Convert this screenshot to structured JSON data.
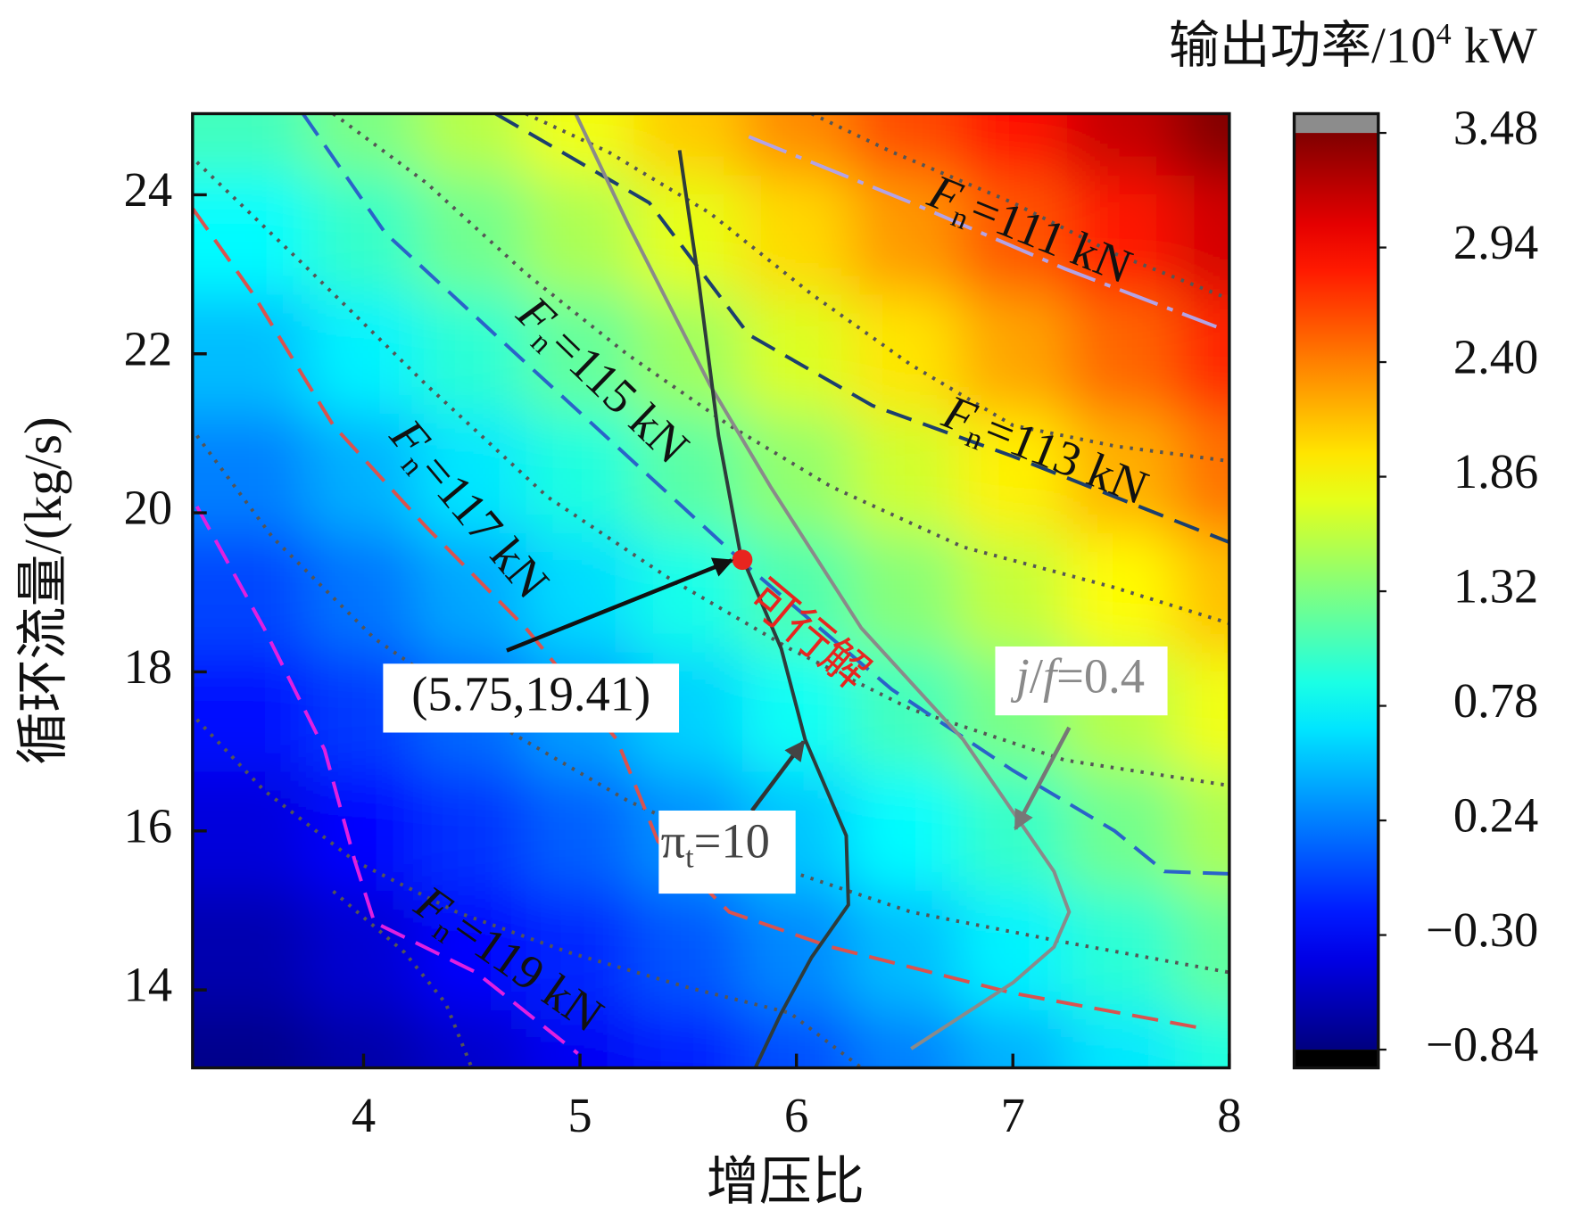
{
  "chart_data": {
    "type": "contour",
    "x_title": "增压比",
    "y_title": "循环流量/(kg/s)",
    "colorbar_title": {
      "text": "输出功率/10",
      "sup": "4",
      "unit": " kW"
    },
    "xlim": [
      3.21,
      8.0
    ],
    "ylim": [
      13.02,
      25.02
    ],
    "xticks": [
      4,
      5,
      6,
      7,
      8
    ],
    "yticks": [
      14,
      16,
      18,
      20,
      22,
      24
    ],
    "zlim": [
      -0.84,
      3.48
    ],
    "zticks": [
      3.48,
      2.94,
      {
        "value": 2.4,
        "label": "2.40"
      },
      1.86,
      1.32,
      0.78,
      0.24,
      {
        "value": -0.3,
        "label": "−0.30"
      },
      {
        "value": -0.84,
        "label": "−0.84"
      }
    ],
    "colormap": "jet",
    "x_grid": [
      3.5,
      4,
      4.5,
      5,
      5.5,
      6,
      6.5,
      7,
      7.5,
      8
    ],
    "y_grid": [
      13,
      14.5,
      16,
      17.5,
      19,
      20.5,
      22,
      23.5,
      25
    ],
    "z": [
      [
        -0.79,
        -0.67,
        -0.52,
        -0.35,
        -0.17,
        0.03,
        0.24,
        0.45,
        0.68,
        0.91
      ],
      [
        -0.64,
        -0.49,
        -0.31,
        -0.13,
        0.07,
        0.28,
        0.5,
        0.73,
        0.96,
        1.2
      ],
      [
        -0.45,
        -0.28,
        -0.09,
        0.11,
        0.32,
        0.54,
        0.77,
        1.01,
        1.26,
        1.51
      ],
      [
        -0.24,
        -0.05,
        0.15,
        0.37,
        0.59,
        0.82,
        1.06,
        1.3,
        1.56,
        1.81
      ],
      [
        -0.01,
        0.2,
        0.41,
        0.63,
        0.87,
        1.11,
        1.35,
        1.61,
        1.87,
        2.13
      ],
      [
        0.24,
        0.45,
        0.68,
        0.91,
        1.16,
        1.4,
        1.66,
        1.92,
        2.19,
        2.46
      ],
      [
        0.5,
        0.73,
        0.96,
        1.2,
        1.45,
        1.71,
        1.97,
        2.24,
        2.51,
        2.79
      ],
      [
        0.77,
        1.01,
        1.26,
        1.51,
        1.76,
        2.02,
        2.29,
        2.57,
        2.85,
        3.13
      ],
      [
        1.06,
        1.3,
        1.56,
        1.81,
        2.08,
        2.35,
        2.62,
        2.9,
        3.19,
        3.48
      ]
    ],
    "power_contours": [
      {
        "color": "#555555",
        "x": [
          6.07,
          6.44,
          7.0,
          7.47,
          8.0
        ],
        "y": [
          25.02,
          24.54,
          23.9,
          23.26,
          22.69
        ]
      },
      {
        "color": "#555555",
        "x": [
          4.75,
          5.13,
          5.6,
          6.07,
          6.53,
          7.0,
          7.47,
          8.0
        ],
        "y": [
          25.02,
          24.54,
          23.77,
          22.75,
          21.86,
          21.1,
          20.84,
          20.65
        ]
      },
      {
        "color": "#555555",
        "x": [
          3.86,
          4.29,
          4.75,
          5.22,
          5.69,
          6.16,
          6.77,
          7.47,
          8.0
        ],
        "y": [
          25.02,
          24.15,
          23.01,
          21.99,
          21.1,
          20.33,
          19.57,
          19.06,
          18.61
        ]
      },
      {
        "color": "#555555",
        "x": [
          3.23,
          3.72,
          4.29,
          4.85,
          5.41,
          5.97,
          6.53,
          7.24,
          8.0
        ],
        "y": [
          24.41,
          23.13,
          21.61,
          20.2,
          19.18,
          18.29,
          17.53,
          16.89,
          16.57
        ]
      },
      {
        "color": "#555555",
        "x": [
          3.23,
          3.58,
          4.05,
          4.66,
          5.22,
          5.83,
          6.53,
          7.24,
          8.0
        ],
        "y": [
          20.97,
          19.69,
          18.42,
          17.27,
          16.38,
          15.62,
          14.98,
          14.6,
          14.22
        ]
      },
      {
        "color": "#555555",
        "x": [
          3.23,
          3.54,
          3.96,
          4.43,
          4.95,
          5.5,
          5.97,
          6.3
        ],
        "y": [
          17.4,
          16.51,
          15.62,
          14.98,
          14.47,
          14.03,
          13.71,
          13.02
        ]
      },
      {
        "color": "#555555",
        "x": [
          3.86,
          4.19,
          4.38,
          4.5
        ],
        "y": [
          15.24,
          14.47,
          13.83,
          13.02
        ]
      }
    ],
    "fn_contours": [
      {
        "label": {
          "symbol": "F",
          "sub": "n",
          "text": "=111 kN"
        },
        "color": "#b3a3e6",
        "dash": "40 10 6 10",
        "x": [
          5.78,
          6.53,
          7.24,
          7.94
        ],
        "y": [
          24.73,
          23.9,
          23.07,
          22.34
        ]
      },
      {
        "label": {
          "symbol": "F",
          "sub": "n",
          "text": "=113 kN"
        },
        "color": "#1c3f6e",
        "dash": "26 12",
        "x": [
          4.61,
          5.32,
          5.78,
          6.35,
          7.0,
          8.0
        ],
        "y": [
          25.02,
          23.9,
          22.24,
          21.35,
          20.71,
          19.63
        ]
      },
      {
        "label": {
          "symbol": "F",
          "sub": "n",
          "text": "=115 kN"
        },
        "color": "#2a63c9",
        "dash": "26 12",
        "x": [
          3.72,
          4.1,
          4.66,
          5.22,
          5.78,
          6.44,
          7.0,
          7.47,
          7.7,
          8.0
        ],
        "y": [
          25.02,
          23.52,
          22.11,
          20.71,
          19.31,
          17.78,
          16.76,
          16.0,
          15.49,
          15.46
        ]
      },
      {
        "label": {
          "symbol": "F",
          "sub": "n",
          "text": "=117 kN"
        },
        "color": "#d9534f",
        "dash": "26 12",
        "x": [
          3.21,
          3.49,
          3.86,
          4.29,
          4.75,
          5.17,
          5.36,
          5.69,
          6.16,
          7.0,
          7.87
        ],
        "y": [
          23.83,
          22.75,
          21.1,
          19.82,
          18.55,
          17.15,
          15.87,
          14.98,
          14.54,
          13.96,
          13.52
        ]
      },
      {
        "label": {
          "symbol": "F",
          "sub": "n",
          "text": "=119 kN"
        },
        "color": "#e020e0",
        "dash": "26 12",
        "x": [
          3.23,
          3.54,
          3.82,
          3.96,
          4.05,
          4.52,
          4.99
        ],
        "y": [
          20.08,
          18.55,
          17.02,
          15.62,
          14.85,
          14.22,
          13.2
        ]
      }
    ],
    "pi_line": {
      "label": {
        "symbol": "π",
        "sub": "t",
        "text": "=10"
      },
      "color": "#2e3b3b",
      "x": [
        5.46,
        5.55,
        5.64,
        5.74,
        5.93,
        6.04,
        6.23,
        6.24,
        6.07,
        5.93,
        5.81
      ],
      "y": [
        24.56,
        22.88,
        20.97,
        19.5,
        18.29,
        17.15,
        15.94,
        15.07,
        14.41,
        13.71,
        13.02
      ]
    },
    "jf_line": {
      "label": [
        "j",
        "/",
        "f",
        "=0.4"
      ],
      "color": "#8a8a8a",
      "x": [
        4.98,
        5.22,
        5.6,
        5.88,
        6.3,
        6.77,
        7.19,
        7.26,
        7.19,
        7.0,
        6.53
      ],
      "y": [
        25.02,
        23.64,
        21.61,
        20.33,
        18.55,
        17.15,
        15.49,
        14.98,
        14.54,
        14.09,
        13.26
      ]
    },
    "point": {
      "x": 5.75,
      "y": 19.41,
      "label": "(5.75,19.41)",
      "color": "#e8251f"
    },
    "feasible_label": "可行解"
  }
}
